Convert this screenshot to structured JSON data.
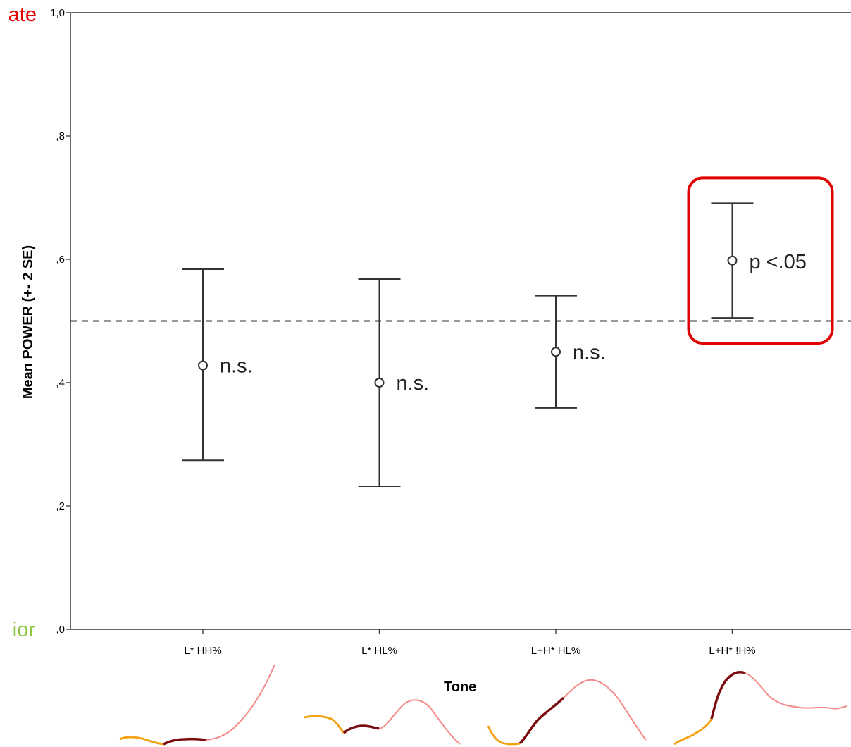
{
  "side_text": {
    "top_left": "ate",
    "bottom_left": "ior"
  },
  "colors": {
    "highlight": "#e10000",
    "left_label_green": "#8cc63f",
    "contour_pre": "#f2a316",
    "contour_dark": "#7b0d10",
    "contour_post": "#f4898a"
  },
  "chart_data": {
    "type": "errorbar",
    "title": "",
    "ylabel": "Mean POWER (+- 2 SE)",
    "xlabel": "Tone",
    "ylim": [
      0,
      1.0
    ],
    "yticks": [
      {
        "value": 0.0,
        "label": ",0"
      },
      {
        "value": 0.2,
        "label": ",2"
      },
      {
        "value": 0.4,
        "label": ",4"
      },
      {
        "value": 0.6,
        "label": ",6"
      },
      {
        "value": 0.8,
        "label": ",8"
      },
      {
        "value": 1.0,
        "label": "1,0"
      }
    ],
    "reference_line": 0.5,
    "categories": [
      "L* HH%",
      "L* HL%",
      "L+H* HL%",
      "L+H* !H%"
    ],
    "means": [
      0.428,
      0.4,
      0.45,
      0.598
    ],
    "lower": [
      0.274,
      0.232,
      0.359,
      0.505
    ],
    "upper": [
      0.584,
      0.568,
      0.541,
      0.691
    ],
    "annotations": [
      "n.s.",
      "n.s.",
      "n.s.",
      "p <.05"
    ],
    "highlighted_category": "L+H* !H%",
    "grid": false
  }
}
